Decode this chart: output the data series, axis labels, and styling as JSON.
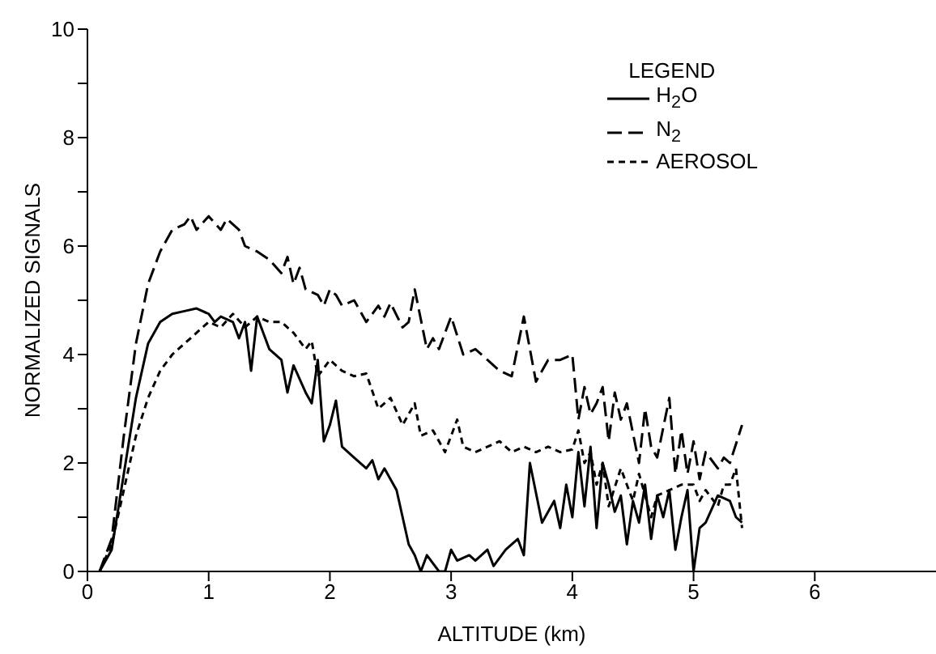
{
  "chart_data": {
    "type": "line",
    "xlabel": "ALTITUDE (km)",
    "ylabel": "NORMALIZED SIGNALS",
    "legend_title": "LEGEND",
    "legend": "top right",
    "grid": false,
    "marker": "none",
    "xlim": [
      0,
      7
    ],
    "xticks": [
      0,
      1,
      2,
      3,
      4,
      5,
      6
    ],
    "ylim": [
      0,
      10
    ],
    "yticks": [
      0,
      {
        "value": 1,
        "label": null
      },
      2,
      {
        "value": 3,
        "label": null
      },
      4,
      {
        "value": 5,
        "label": null
      },
      6,
      {
        "value": 7,
        "label": null
      },
      8,
      {
        "value": 9,
        "label": null
      },
      10
    ],
    "series": [
      {
        "name": "H$_{2}$O",
        "color": "#000000",
        "line_style": "solid",
        "x": [
          0.1,
          0.2,
          0.3,
          0.4,
          0.5,
          0.6,
          0.7,
          0.8,
          0.9,
          1.0,
          1.05,
          1.1,
          1.2,
          1.25,
          1.3,
          1.35,
          1.4,
          1.5,
          1.6,
          1.65,
          1.7,
          1.8,
          1.85,
          1.9,
          1.95,
          2.0,
          2.05,
          2.1,
          2.2,
          2.3,
          2.35,
          2.4,
          2.45,
          2.55,
          2.65,
          2.7,
          2.75,
          2.8,
          2.9,
          2.95,
          3.0,
          3.05,
          3.15,
          3.2,
          3.3,
          3.35,
          3.45,
          3.55,
          3.6,
          3.65,
          3.75,
          3.85,
          3.9,
          3.95,
          4.0,
          4.05,
          4.1,
          4.15,
          4.2,
          4.25,
          4.3,
          4.35,
          4.4,
          4.45,
          4.5,
          4.55,
          4.6,
          4.65,
          4.7,
          4.75,
          4.8,
          4.85,
          4.9,
          4.95,
          5.0,
          5.05,
          5.1,
          5.2,
          5.3,
          5.35,
          5.4
        ],
        "values": [
          0,
          0.4,
          1.8,
          3.2,
          4.2,
          4.6,
          4.75,
          4.8,
          4.85,
          4.75,
          4.6,
          4.7,
          4.6,
          4.3,
          4.6,
          3.7,
          4.7,
          4.1,
          3.9,
          3.3,
          3.8,
          3.3,
          3.1,
          3.9,
          2.4,
          2.7,
          3.15,
          2.3,
          2.1,
          1.9,
          2.05,
          1.7,
          1.9,
          1.5,
          0.5,
          0.3,
          0,
          0.3,
          0,
          0,
          0.4,
          0.2,
          0.3,
          0.2,
          0.4,
          0.1,
          0.4,
          0.6,
          0.3,
          2.0,
          0.9,
          1.3,
          0.8,
          1.6,
          1.0,
          2.2,
          1.2,
          2.3,
          0.8,
          2.0,
          1.6,
          1.1,
          1.4,
          0.5,
          1.3,
          0.9,
          1.6,
          0.6,
          1.4,
          1.0,
          1.5,
          0.4,
          1.0,
          1.5,
          0,
          0.8,
          0.9,
          1.4,
          1.3,
          1.0,
          0.9
        ]
      },
      {
        "name": "N$_{2}$",
        "color": "#000000",
        "line_style": "dashed",
        "x": [
          0.1,
          0.2,
          0.3,
          0.4,
          0.5,
          0.6,
          0.7,
          0.8,
          0.85,
          0.9,
          1.0,
          1.1,
          1.15,
          1.25,
          1.3,
          1.4,
          1.5,
          1.6,
          1.65,
          1.7,
          1.75,
          1.8,
          1.9,
          1.95,
          2.0,
          2.05,
          2.1,
          2.2,
          2.25,
          2.3,
          2.4,
          2.45,
          2.5,
          2.6,
          2.65,
          2.7,
          2.8,
          2.85,
          2.9,
          3.0,
          3.1,
          3.2,
          3.3,
          3.4,
          3.5,
          3.6,
          3.7,
          3.8,
          3.9,
          4.0,
          4.05,
          4.1,
          4.15,
          4.2,
          4.25,
          4.3,
          4.35,
          4.4,
          4.45,
          4.55,
          4.6,
          4.65,
          4.7,
          4.8,
          4.85,
          4.9,
          4.95,
          5.0,
          5.05,
          5.1,
          5.2,
          5.25,
          5.3,
          5.4
        ],
        "values": [
          0,
          0.6,
          2.5,
          4.2,
          5.3,
          5.9,
          6.3,
          6.4,
          6.55,
          6.3,
          6.55,
          6.3,
          6.5,
          6.3,
          6.0,
          5.9,
          5.75,
          5.5,
          5.8,
          5.3,
          5.6,
          5.2,
          5.1,
          4.9,
          5.2,
          5.1,
          4.9,
          5.0,
          4.8,
          4.6,
          4.9,
          4.7,
          4.95,
          4.5,
          4.6,
          5.2,
          4.1,
          4.3,
          4.1,
          4.7,
          4.0,
          4.1,
          3.9,
          3.7,
          3.6,
          4.7,
          3.5,
          3.9,
          3.9,
          4.0,
          2.8,
          3.4,
          2.9,
          3.1,
          3.4,
          2.4,
          3.3,
          2.8,
          3.1,
          2.0,
          3.0,
          2.3,
          2.1,
          3.2,
          1.8,
          2.6,
          1.8,
          2.4,
          1.7,
          2.2,
          1.9,
          2.1,
          2.0,
          2.7
        ]
      },
      {
        "name": "AEROSOL",
        "color": "#000000",
        "line_style": "dotted",
        "x": [
          0.1,
          0.2,
          0.3,
          0.4,
          0.5,
          0.6,
          0.7,
          0.8,
          0.9,
          1.0,
          1.1,
          1.2,
          1.3,
          1.4,
          1.5,
          1.6,
          1.7,
          1.8,
          1.85,
          1.9,
          2.0,
          2.1,
          2.2,
          2.3,
          2.4,
          2.5,
          2.6,
          2.7,
          2.75,
          2.85,
          2.95,
          3.05,
          3.1,
          3.2,
          3.3,
          3.4,
          3.5,
          3.6,
          3.7,
          3.8,
          3.9,
          4.0,
          4.05,
          4.1,
          4.15,
          4.2,
          4.25,
          4.3,
          4.4,
          4.5,
          4.55,
          4.65,
          4.7,
          4.8,
          4.9,
          5.0,
          5.05,
          5.1,
          5.2,
          5.25,
          5.3,
          5.35,
          5.4
        ],
        "values": [
          0,
          0.5,
          1.5,
          2.5,
          3.2,
          3.7,
          4.0,
          4.2,
          4.4,
          4.6,
          4.5,
          4.75,
          4.5,
          4.7,
          4.6,
          4.6,
          4.4,
          4.1,
          4.25,
          3.6,
          3.9,
          3.7,
          3.6,
          3.65,
          3.0,
          3.2,
          2.7,
          3.1,
          2.5,
          2.6,
          2.2,
          2.8,
          2.3,
          2.2,
          2.3,
          2.4,
          2.2,
          2.3,
          2.2,
          2.3,
          2.2,
          2.25,
          2.6,
          2.0,
          2.2,
          1.6,
          2.0,
          1.2,
          1.9,
          1.3,
          1.8,
          1.0,
          1.4,
          1.5,
          1.6,
          1.6,
          1.3,
          1.5,
          1.2,
          1.6,
          1.6,
          1.9,
          0.8
        ]
      }
    ]
  }
}
